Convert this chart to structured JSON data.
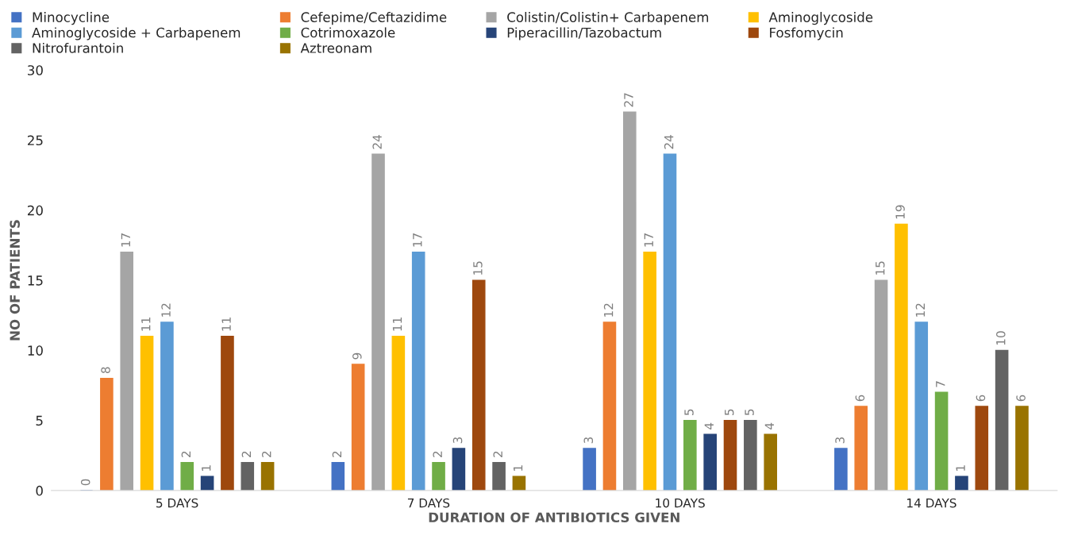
{
  "chart_data": {
    "type": "bar",
    "xlabel": "DURATION OF ANTIBIOTICS GIVEN",
    "ylabel": "NO OF PATIENTS",
    "categories": [
      "5 DAYS",
      "7 DAYS",
      "10 DAYS",
      "14 DAYS"
    ],
    "series": [
      {
        "name": "Minocycline",
        "color": "#4472c4",
        "values": [
          0,
          2,
          3,
          3
        ]
      },
      {
        "name": "Cefepime/Ceftazidime",
        "color": "#ed7d31",
        "values": [
          8,
          9,
          12,
          6
        ]
      },
      {
        "name": "Colistin/Colistin+ Carbapenem",
        "color": "#a5a5a5",
        "values": [
          17,
          24,
          27,
          15
        ]
      },
      {
        "name": "Aminoglycoside",
        "color": "#ffc000",
        "values": [
          11,
          11,
          17,
          19
        ]
      },
      {
        "name": "Aminoglycoside + Carbapenem",
        "color": "#5b9bd5",
        "values": [
          12,
          17,
          24,
          12
        ]
      },
      {
        "name": "Cotrimoxazole",
        "color": "#70ad47",
        "values": [
          2,
          2,
          5,
          7
        ]
      },
      {
        "name": "Piperacillin/Tazobactum",
        "color": "#264478",
        "values": [
          1,
          3,
          4,
          1
        ]
      },
      {
        "name": "Fosfomycin",
        "color": "#9e480e",
        "values": [
          11,
          15,
          5,
          6
        ]
      },
      {
        "name": "Nitrofurantoin",
        "color": "#636363",
        "values": [
          2,
          2,
          5,
          10
        ]
      },
      {
        "name": "Aztreonam",
        "color": "#997300",
        "values": [
          2,
          1,
          4,
          6
        ]
      }
    ],
    "ylim": [
      0,
      30
    ],
    "yticks": [
      0,
      5,
      10,
      15,
      20,
      25,
      30
    ],
    "grid": false,
    "legend": "top",
    "data_labels": true
  }
}
